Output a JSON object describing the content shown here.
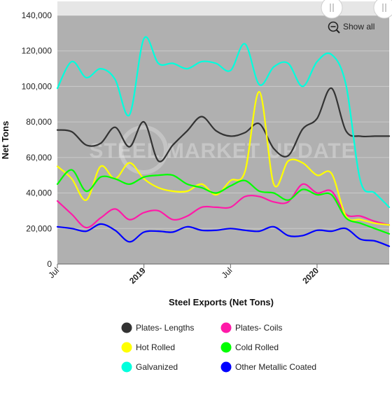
{
  "chart_data": {
    "type": "line",
    "title": "",
    "xlabel": "Steel Exports (Net Tons)",
    "ylabel": "Net Tons",
    "ylim": [
      0,
      140000
    ],
    "yticks": [
      "0",
      "20,000",
      "40,000",
      "60,000",
      "80,000",
      "100,000",
      "120,000",
      "140,000"
    ],
    "x_range": [
      "2018-07",
      "2020-06"
    ],
    "xticks": [
      {
        "label": "Jul",
        "x": "2018-07",
        "bold": false
      },
      {
        "label": "2019",
        "x": "2019-01",
        "bold": true
      },
      {
        "label": "Jul",
        "x": "2019-07",
        "bold": false
      },
      {
        "label": "2020",
        "x": "2020-01",
        "bold": true
      }
    ],
    "x": [
      "2018-07",
      "2018-08",
      "2018-09",
      "2018-10",
      "2018-11",
      "2018-12",
      "2019-01",
      "2019-02",
      "2019-03",
      "2019-04",
      "2019-05",
      "2019-06",
      "2019-07",
      "2019-08",
      "2019-09",
      "2019-10",
      "2019-11",
      "2019-12",
      "2020-01",
      "2020-02",
      "2020-03",
      "2020-04",
      "2020-05",
      "2020-06"
    ],
    "series": [
      {
        "name": "Plates- Lengths",
        "color": "#333333",
        "values": [
          75500,
          74500,
          67000,
          68000,
          77000,
          66000,
          80000,
          58000,
          67000,
          75000,
          83000,
          75000,
          72000,
          74000,
          79000,
          65000,
          61000,
          76000,
          82000,
          99000,
          75000,
          72000,
          72000,
          72000
        ]
      },
      {
        "name": "Plates- Coils",
        "color": "#ff1aa8",
        "values": [
          35500,
          28000,
          20500,
          26000,
          31000,
          25000,
          29000,
          30000,
          25000,
          27000,
          32000,
          32000,
          32000,
          38000,
          38000,
          35000,
          35000,
          45000,
          40000,
          41000,
          28000,
          27000,
          24000,
          22000
        ]
      },
      {
        "name": "Hot Rolled",
        "color": "#ffff00",
        "values": [
          55000,
          48000,
          36000,
          55000,
          48000,
          57000,
          48000,
          43000,
          41000,
          41000,
          45000,
          39000,
          47000,
          52000,
          97000,
          45000,
          58000,
          57000,
          50000,
          51000,
          27000,
          25000,
          23000,
          22000
        ]
      },
      {
        "name": "Cold Rolled",
        "color": "#00ff00",
        "values": [
          45000,
          53000,
          41000,
          49000,
          48000,
          45000,
          49000,
          50000,
          50000,
          45000,
          43000,
          40000,
          44000,
          47000,
          41000,
          40000,
          36000,
          42000,
          39000,
          39000,
          26000,
          23000,
          20000,
          17000
        ]
      },
      {
        "name": "Galvanized",
        "color": "#00ffdd",
        "values": [
          99000,
          114000,
          105000,
          110000,
          104000,
          84000,
          127000,
          113000,
          113000,
          110000,
          114000,
          113000,
          109000,
          124000,
          101000,
          111000,
          113000,
          100000,
          114000,
          118000,
          101000,
          47000,
          40000,
          32000
        ]
      },
      {
        "name": "Other Metallic Coated",
        "color": "#0000ff",
        "values": [
          21000,
          20000,
          18500,
          22500,
          19000,
          12500,
          18000,
          18500,
          18000,
          21000,
          19000,
          19000,
          20000,
          19000,
          18500,
          21000,
          16000,
          16000,
          19000,
          18500,
          20000,
          14000,
          13000,
          10000
        ]
      }
    ],
    "legend_placement": "bottom",
    "grid": true,
    "plot_background": "#b0b0b0",
    "watermark": "STEEL MARKET UPDATE"
  },
  "controls": {
    "show_all_label": "Show all"
  }
}
